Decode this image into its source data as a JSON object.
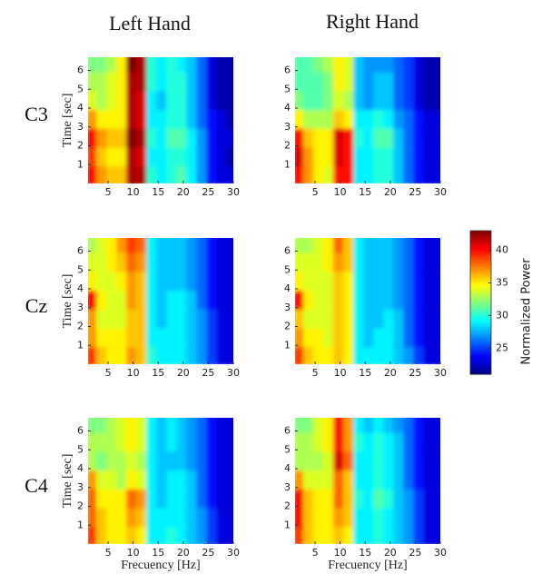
{
  "columns": [
    "Left Hand",
    "Right Hand"
  ],
  "rows": [
    "C3",
    "Cz",
    "C4"
  ],
  "xlabel": "Frecuency [Hz]",
  "ylabel": "Time [sec]",
  "colorbar": {
    "label": "Normalized Power",
    "lim": [
      21,
      43
    ],
    "ticks": [
      25,
      30,
      35,
      40
    ],
    "colormap": "jet"
  },
  "chart_data": [
    {
      "type": "heatmap",
      "x": [
        2,
        4,
        6,
        8,
        10,
        12,
        14,
        16,
        18,
        20,
        22,
        24,
        26,
        28,
        30
      ],
      "y": [
        0.5,
        1.5,
        2.5,
        3.5,
        4.5,
        5.5,
        6.5
      ],
      "xlim": [
        1,
        30
      ],
      "ylim": [
        0,
        6.7
      ],
      "xticks": [
        5,
        10,
        15,
        20,
        25,
        30
      ],
      "yticks": [
        1,
        2,
        3,
        4,
        5,
        6
      ],
      "values": [
        [
          40,
          37,
          36,
          36,
          42,
          42,
          30,
          29,
          30,
          31,
          29,
          27,
          24,
          23,
          23
        ],
        [
          39,
          36,
          35,
          35,
          42,
          41,
          29,
          29,
          30,
          30,
          29,
          27,
          24,
          23,
          22
        ],
        [
          40,
          37,
          36,
          36,
          43,
          42,
          30,
          29,
          31,
          31,
          29,
          27,
          24,
          23,
          23
        ],
        [
          37,
          35,
          35,
          35,
          42,
          41,
          29,
          29,
          30,
          30,
          28,
          26,
          24,
          23,
          22
        ],
        [
          34,
          33,
          34,
          35,
          42,
          41,
          29,
          28,
          30,
          30,
          28,
          26,
          23,
          22,
          22
        ],
        [
          33,
          33,
          34,
          35,
          42,
          42,
          30,
          29,
          30,
          30,
          28,
          26,
          23,
          22,
          22
        ],
        [
          32,
          32,
          33,
          35,
          43,
          42,
          30,
          29,
          30,
          29,
          28,
          26,
          23,
          22,
          22
        ]
      ]
    },
    {
      "type": "heatmap",
      "x": [
        2,
        4,
        6,
        8,
        10,
        12,
        14,
        16,
        18,
        20,
        22,
        24,
        26,
        28,
        30
      ],
      "y": [
        0.5,
        1.5,
        2.5,
        3.5,
        4.5,
        5.5,
        6.5
      ],
      "xlim": [
        1,
        30
      ],
      "ylim": [
        0,
        6.7
      ],
      "xticks": [
        5,
        10,
        15,
        20,
        25,
        30
      ],
      "yticks": [
        1,
        2,
        3,
        4,
        5,
        6
      ],
      "values": [
        [
          40,
          37,
          35,
          34,
          40,
          40,
          29,
          29,
          30,
          30,
          28,
          26,
          24,
          23,
          23
        ],
        [
          41,
          37,
          35,
          35,
          41,
          40,
          29,
          29,
          30,
          30,
          28,
          26,
          24,
          23,
          23
        ],
        [
          40,
          36,
          35,
          35,
          41,
          40,
          30,
          29,
          31,
          31,
          28,
          26,
          24,
          23,
          23
        ],
        [
          35,
          33,
          33,
          33,
          36,
          35,
          29,
          29,
          30,
          29,
          27,
          26,
          24,
          23,
          23
        ],
        [
          32,
          31,
          31,
          32,
          34,
          33,
          28,
          27,
          28,
          28,
          26,
          25,
          23,
          22,
          22
        ],
        [
          31,
          31,
          31,
          32,
          35,
          34,
          28,
          27,
          28,
          28,
          26,
          25,
          23,
          22,
          22
        ],
        [
          31,
          31,
          32,
          33,
          35,
          34,
          28,
          27,
          27,
          27,
          26,
          25,
          23,
          22,
          22
        ]
      ]
    },
    {
      "type": "heatmap",
      "x": [
        2,
        4,
        6,
        8,
        10,
        12,
        14,
        16,
        18,
        20,
        22,
        24,
        26,
        28,
        30
      ],
      "y": [
        0.5,
        1.5,
        2.5,
        3.5,
        4.5,
        5.5,
        6.5
      ],
      "xlim": [
        1,
        30
      ],
      "ylim": [
        0,
        6.7
      ],
      "xticks": [
        5,
        10,
        15,
        20,
        25,
        30
      ],
      "yticks": [
        1,
        2,
        3,
        4,
        5,
        6
      ],
      "values": [
        [
          39,
          36,
          35,
          35,
          37,
          36,
          30,
          29,
          29,
          29,
          28,
          27,
          25,
          23,
          23
        ],
        [
          37,
          35,
          35,
          35,
          36,
          36,
          29,
          29,
          29,
          29,
          28,
          27,
          25,
          23,
          23
        ],
        [
          37,
          34,
          34,
          34,
          36,
          36,
          29,
          28,
          29,
          29,
          28,
          27,
          25,
          23,
          23
        ],
        [
          40,
          35,
          34,
          34,
          37,
          36,
          29,
          28,
          29,
          29,
          28,
          26,
          24,
          23,
          23
        ],
        [
          35,
          34,
          34,
          35,
          37,
          36,
          29,
          28,
          28,
          28,
          27,
          26,
          24,
          23,
          23
        ],
        [
          34,
          34,
          35,
          36,
          38,
          37,
          29,
          28,
          28,
          28,
          27,
          26,
          24,
          23,
          23
        ],
        [
          33,
          34,
          35,
          37,
          39,
          38,
          29,
          28,
          28,
          28,
          27,
          26,
          24,
          23,
          23
        ]
      ]
    },
    {
      "type": "heatmap",
      "x": [
        2,
        4,
        6,
        8,
        10,
        12,
        14,
        16,
        18,
        20,
        22,
        24,
        26,
        28,
        30
      ],
      "y": [
        0.5,
        1.5,
        2.5,
        3.5,
        4.5,
        5.5,
        6.5
      ],
      "xlim": [
        1,
        30
      ],
      "ylim": [
        0,
        6.7
      ],
      "xticks": [
        5,
        10,
        15,
        20,
        25,
        30
      ],
      "yticks": [
        1,
        2,
        3,
        4,
        5,
        6
      ],
      "values": [
        [
          39,
          36,
          35,
          35,
          36,
          35,
          29,
          29,
          29,
          29,
          28,
          27,
          25,
          23,
          23
        ],
        [
          37,
          35,
          35,
          34,
          36,
          35,
          29,
          28,
          29,
          29,
          28,
          26,
          24,
          23,
          23
        ],
        [
          36,
          34,
          34,
          34,
          36,
          35,
          29,
          28,
          28,
          29,
          28,
          26,
          24,
          23,
          23
        ],
        [
          40,
          35,
          34,
          34,
          36,
          35,
          29,
          28,
          28,
          28,
          27,
          26,
          24,
          23,
          23
        ],
        [
          35,
          34,
          34,
          34,
          36,
          35,
          29,
          28,
          28,
          28,
          27,
          26,
          24,
          23,
          23
        ],
        [
          34,
          34,
          34,
          35,
          37,
          36,
          29,
          28,
          28,
          28,
          27,
          26,
          24,
          23,
          23
        ],
        [
          33,
          33,
          34,
          35,
          38,
          36,
          29,
          28,
          28,
          28,
          27,
          26,
          24,
          23,
          23
        ]
      ]
    },
    {
      "type": "heatmap",
      "x": [
        2,
        4,
        6,
        8,
        10,
        12,
        14,
        16,
        18,
        20,
        22,
        24,
        26,
        28,
        30
      ],
      "y": [
        0.5,
        1.5,
        2.5,
        3.5,
        4.5,
        5.5,
        6.5
      ],
      "xlim": [
        1,
        30
      ],
      "ylim": [
        0,
        6.7
      ],
      "xticks": [
        5,
        10,
        15,
        20,
        25,
        30
      ],
      "yticks": [
        1,
        2,
        3,
        4,
        5,
        6
      ],
      "values": [
        [
          39,
          36,
          35,
          35,
          36,
          35,
          29,
          29,
          30,
          29,
          28,
          27,
          25,
          23,
          23
        ],
        [
          38,
          36,
          35,
          35,
          37,
          36,
          29,
          29,
          29,
          29,
          28,
          27,
          25,
          23,
          23
        ],
        [
          38,
          35,
          35,
          35,
          38,
          37,
          29,
          28,
          29,
          29,
          28,
          26,
          24,
          23,
          23
        ],
        [
          37,
          34,
          34,
          33,
          35,
          34,
          29,
          28,
          29,
          29,
          28,
          26,
          24,
          23,
          23
        ],
        [
          33,
          32,
          33,
          33,
          34,
          33,
          29,
          28,
          28,
          28,
          27,
          26,
          24,
          23,
          23
        ],
        [
          33,
          33,
          33,
          34,
          35,
          34,
          29,
          28,
          29,
          28,
          27,
          26,
          24,
          23,
          23
        ],
        [
          32,
          32,
          33,
          34,
          35,
          34,
          29,
          28,
          29,
          28,
          27,
          26,
          24,
          23,
          23
        ]
      ]
    },
    {
      "type": "heatmap",
      "x": [
        2,
        4,
        6,
        8,
        10,
        12,
        14,
        16,
        18,
        20,
        22,
        24,
        26,
        28,
        30
      ],
      "y": [
        0.5,
        1.5,
        2.5,
        3.5,
        4.5,
        5.5,
        6.5
      ],
      "xlim": [
        1,
        30
      ],
      "ylim": [
        0,
        6.7
      ],
      "xticks": [
        5,
        10,
        15,
        20,
        25,
        30
      ],
      "yticks": [
        1,
        2,
        3,
        4,
        5,
        6
      ],
      "values": [
        [
          39,
          36,
          35,
          35,
          36,
          35,
          29,
          29,
          30,
          29,
          28,
          27,
          25,
          23,
          23
        ],
        [
          40,
          36,
          35,
          35,
          37,
          36,
          29,
          29,
          30,
          29,
          28,
          27,
          25,
          23,
          23
        ],
        [
          40,
          36,
          35,
          35,
          38,
          36,
          30,
          29,
          31,
          30,
          28,
          27,
          25,
          23,
          23
        ],
        [
          37,
          34,
          34,
          34,
          38,
          36,
          29,
          29,
          30,
          29,
          28,
          26,
          24,
          23,
          23
        ],
        [
          33,
          33,
          33,
          34,
          41,
          38,
          29,
          29,
          30,
          29,
          28,
          26,
          24,
          23,
          23
        ],
        [
          33,
          33,
          34,
          35,
          40,
          37,
          30,
          29,
          30,
          29,
          28,
          26,
          24,
          23,
          23
        ],
        [
          32,
          32,
          34,
          35,
          40,
          37,
          29,
          28,
          29,
          28,
          27,
          26,
          24,
          23,
          23
        ]
      ]
    }
  ]
}
